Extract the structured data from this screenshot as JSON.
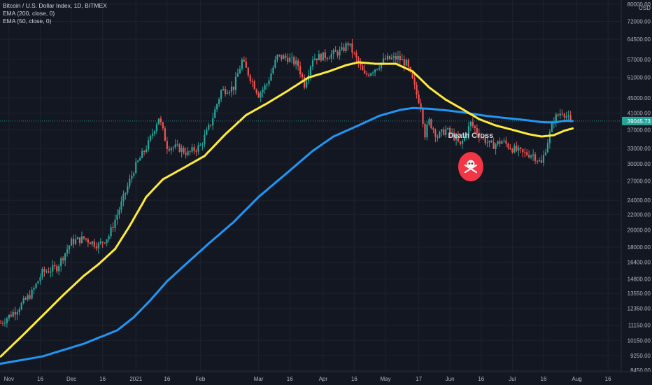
{
  "legend": {
    "symbol": "Bitcoin / U.S. Dollar Index, 1D, BITMEX",
    "ema200": "EMA (200, close, 0)",
    "ema50": "EMA (50, close, 0)"
  },
  "colors": {
    "background": "#131722",
    "up": "#26a69a",
    "down": "#ef5350",
    "ema200": "#2196f3",
    "ema50": "#ffeb3b",
    "price_tag": "#26a69a",
    "annotation_circle": "#f23645"
  },
  "chart_data": {
    "type": "candlestick",
    "y_scale": "log",
    "ylim": [
      8450,
      80000
    ],
    "currency_label": "USD",
    "current_price": "39045.73",
    "current_price_value": 39045.73,
    "annotation": {
      "text": "Death Cross",
      "icon": "skull-crossbones-icon",
      "date_index": 226,
      "price": 29500
    },
    "x_ticks": [
      "Nov",
      "16",
      "Dec",
      "16",
      "2021",
      "16",
      "Feb",
      "Mar",
      "16",
      "Apr",
      "16",
      "May",
      "17",
      "Jun",
      "16",
      "Jul",
      "16",
      "Aug",
      "16"
    ],
    "x_tick_day_index": [
      4,
      19,
      34,
      49,
      65,
      80,
      96,
      124,
      139,
      155,
      170,
      185,
      201,
      216,
      231,
      246,
      261,
      277,
      292
    ],
    "y_ticks": [
      {
        "label": "80000.00",
        "value": 80000
      },
      {
        "label": "72000.00",
        "value": 72000
      },
      {
        "label": "64500.00",
        "value": 64500
      },
      {
        "label": "57000.00",
        "value": 57000
      },
      {
        "label": "51000.00",
        "value": 51000
      },
      {
        "label": "45000.00",
        "value": 45000
      },
      {
        "label": "41000.00",
        "value": 41000
      },
      {
        "label": "37000.00",
        "value": 37000
      },
      {
        "label": "33000.00",
        "value": 33000
      },
      {
        "label": "30000.00",
        "value": 30000
      },
      {
        "label": "27000.00",
        "value": 27000
      },
      {
        "label": "24000.00",
        "value": 24000
      },
      {
        "label": "22000.00",
        "value": 22000
      },
      {
        "label": "20000.00",
        "value": 20000
      },
      {
        "label": "18000.00",
        "value": 18000
      },
      {
        "label": "16400.00",
        "value": 16400
      },
      {
        "label": "14800.00",
        "value": 14800
      },
      {
        "label": "13550.00",
        "value": 13550
      },
      {
        "label": "12350.00",
        "value": 12350
      },
      {
        "label": "11150.00",
        "value": 11150
      },
      {
        "label": "10150.00",
        "value": 10150
      },
      {
        "label": "9250.00",
        "value": 9250
      },
      {
        "label": "8450.00",
        "value": 8450
      }
    ],
    "price_anchors": [
      [
        0,
        11300
      ],
      [
        8,
        12300
      ],
      [
        15,
        13600
      ],
      [
        20,
        15400
      ],
      [
        27,
        15900
      ],
      [
        34,
        18600
      ],
      [
        40,
        19000
      ],
      [
        47,
        18200
      ],
      [
        52,
        19300
      ],
      [
        58,
        23500
      ],
      [
        64,
        29000
      ],
      [
        71,
        34000
      ],
      [
        76,
        40000
      ],
      [
        80,
        33500
      ],
      [
        86,
        33000
      ],
      [
        90,
        32000
      ],
      [
        96,
        33500
      ],
      [
        101,
        38500
      ],
      [
        106,
        47000
      ],
      [
        112,
        48000
      ],
      [
        116,
        56500
      ],
      [
        120,
        51000
      ],
      [
        124,
        46000
      ],
      [
        128,
        49000
      ],
      [
        133,
        58000
      ],
      [
        138,
        57500
      ],
      [
        143,
        55000
      ],
      [
        146,
        49000
      ],
      [
        150,
        57500
      ],
      [
        154,
        58000
      ],
      [
        158,
        58500
      ],
      [
        164,
        60000
      ],
      [
        167,
        63000
      ],
      [
        170,
        58500
      ],
      [
        175,
        51500
      ],
      [
        180,
        54000
      ],
      [
        185,
        57000
      ],
      [
        191,
        57500
      ],
      [
        195,
        55500
      ],
      [
        198,
        50000
      ],
      [
        200,
        46000
      ],
      [
        202,
        43000
      ],
      [
        204,
        36000
      ],
      [
        206,
        39000
      ],
      [
        210,
        35500
      ],
      [
        214,
        37000
      ],
      [
        218,
        35500
      ],
      [
        221,
        33500
      ],
      [
        226,
        38500
      ],
      [
        231,
        35500
      ],
      [
        236,
        33500
      ],
      [
        241,
        34500
      ],
      [
        246,
        33000
      ],
      [
        251,
        32000
      ],
      [
        256,
        31800
      ],
      [
        260,
        30000
      ],
      [
        262,
        33000
      ],
      [
        266,
        39500
      ],
      [
        270,
        41500
      ],
      [
        274,
        39000
      ]
    ],
    "ema50_anchors": [
      [
        0,
        9200
      ],
      [
        10,
        10400
      ],
      [
        20,
        11800
      ],
      [
        30,
        13400
      ],
      [
        40,
        15100
      ],
      [
        47,
        16200
      ],
      [
        55,
        17800
      ],
      [
        62,
        20500
      ],
      [
        70,
        24500
      ],
      [
        78,
        27300
      ],
      [
        88,
        29300
      ],
      [
        98,
        31500
      ],
      [
        108,
        36000
      ],
      [
        118,
        40500
      ],
      [
        128,
        43500
      ],
      [
        138,
        47000
      ],
      [
        148,
        51000
      ],
      [
        158,
        53000
      ],
      [
        166,
        55000
      ],
      [
        172,
        56000
      ],
      [
        180,
        55500
      ],
      [
        190,
        55500
      ],
      [
        198,
        53000
      ],
      [
        206,
        48000
      ],
      [
        214,
        44500
      ],
      [
        222,
        42000
      ],
      [
        230,
        39500
      ],
      [
        238,
        38000
      ],
      [
        246,
        37000
      ],
      [
        254,
        36000
      ],
      [
        260,
        35500
      ],
      [
        266,
        35800
      ],
      [
        271,
        36800
      ],
      [
        275,
        37300
      ]
    ],
    "ema200_anchors": [
      [
        0,
        8800
      ],
      [
        20,
        9200
      ],
      [
        40,
        9950
      ],
      [
        56,
        10800
      ],
      [
        64,
        11700
      ],
      [
        72,
        13000
      ],
      [
        80,
        14600
      ],
      [
        90,
        16400
      ],
      [
        100,
        18400
      ],
      [
        112,
        21000
      ],
      [
        124,
        24500
      ],
      [
        138,
        28500
      ],
      [
        150,
        32500
      ],
      [
        160,
        35500
      ],
      [
        172,
        38000
      ],
      [
        182,
        40300
      ],
      [
        192,
        41800
      ],
      [
        198,
        42300
      ],
      [
        206,
        42100
      ],
      [
        214,
        41700
      ],
      [
        222,
        41200
      ],
      [
        232,
        40400
      ],
      [
        242,
        39800
      ],
      [
        252,
        39300
      ],
      [
        260,
        38800
      ],
      [
        266,
        38700
      ],
      [
        271,
        39100
      ],
      [
        275,
        39050
      ]
    ],
    "x_range_days": [
      0,
      297
    ],
    "legend_placement": "top-left"
  }
}
